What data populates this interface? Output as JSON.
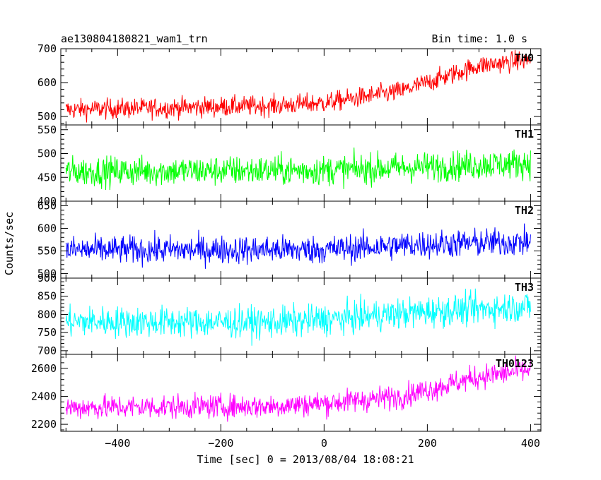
{
  "header": {
    "title": "ae130804180821_wam1_trn",
    "bin_time": "Bin time: 1.0 s"
  },
  "axes": {
    "ylabel": "Counts/sec",
    "xlabel": "Time [sec] 0 = 2013/08/04 18:08:21"
  },
  "chart_data": [
    {
      "type": "line",
      "name": "TH0",
      "color": "#ff0000",
      "xlim": [
        -510,
        420
      ],
      "ylim": [
        475,
        700
      ],
      "yticks_major": [
        500,
        600,
        700
      ],
      "x_start": -500,
      "x_end": 400,
      "x_step": 1,
      "trend": {
        "x": [
          -500,
          -100,
          0,
          150,
          300,
          400
        ],
        "y": [
          520,
          532,
          540,
          575,
          650,
          668
        ]
      },
      "noise_amplitude": 38
    },
    {
      "type": "line",
      "name": "TH1",
      "color": "#00ff00",
      "xlim": [
        -510,
        420
      ],
      "ylim": [
        400,
        560
      ],
      "yticks_major": [
        400,
        450,
        500,
        550
      ],
      "x_start": -500,
      "x_end": 400,
      "x_step": 1,
      "trend": {
        "x": [
          -500,
          0,
          200,
          400
        ],
        "y": [
          462,
          465,
          472,
          480
        ]
      },
      "noise_amplitude": 40
    },
    {
      "type": "line",
      "name": "TH2",
      "color": "#0000ff",
      "xlim": [
        -510,
        420
      ],
      "ylim": [
        490,
        660
      ],
      "yticks_major": [
        500,
        550,
        600,
        650
      ],
      "x_start": -500,
      "x_end": 400,
      "x_step": 1,
      "trend": {
        "x": [
          -500,
          0,
          200,
          400
        ],
        "y": [
          552,
          553,
          565,
          570
        ]
      },
      "noise_amplitude": 40
    },
    {
      "type": "line",
      "name": "TH3",
      "color": "#00ffff",
      "xlim": [
        -510,
        420
      ],
      "ylim": [
        690,
        900
      ],
      "yticks_major": [
        700,
        750,
        800,
        850,
        900
      ],
      "x_start": -500,
      "x_end": 400,
      "x_step": 1,
      "trend": {
        "x": [
          -500,
          -100,
          0,
          200,
          400
        ],
        "y": [
          780,
          778,
          785,
          808,
          822
        ]
      },
      "noise_amplitude": 55
    },
    {
      "type": "line",
      "name": "TH0123",
      "color": "#ff00ff",
      "xlim": [
        -510,
        420
      ],
      "ylim": [
        2150,
        2700
      ],
      "yticks_major": [
        2200,
        2400,
        2600
      ],
      "x_start": -500,
      "x_end": 400,
      "x_step": 1,
      "trend": {
        "x": [
          -500,
          -100,
          0,
          150,
          300,
          400
        ],
        "y": [
          2320,
          2330,
          2350,
          2400,
          2540,
          2590
        ]
      },
      "noise_amplitude": 110
    }
  ],
  "xticks_major": [
    -400,
    -200,
    0,
    200,
    400
  ],
  "xticks_major_labels": [
    "−400",
    "−200",
    "0",
    "200",
    "400"
  ]
}
